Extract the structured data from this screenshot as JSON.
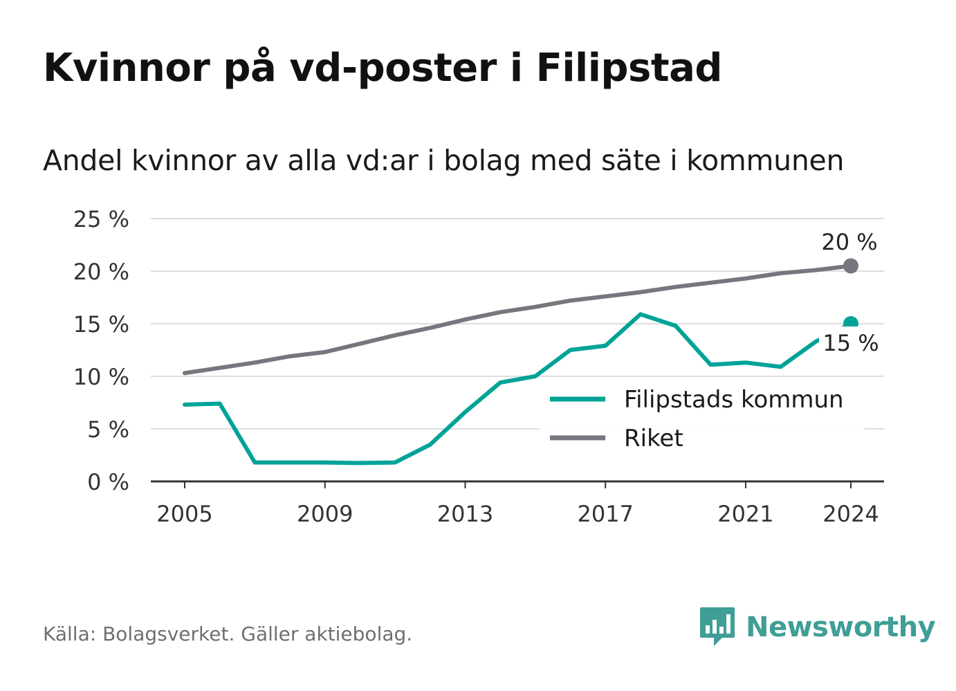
{
  "title": "Kvinnor på vd-poster i Filipstad",
  "subtitle": "Andel kvinnor av alla vd:ar i bolag med säte i kommunen",
  "source": "Källa: Bolagsverket. Gäller aktiebolag.",
  "brand": {
    "name": "Newsworthy",
    "icon": "newsworthy-logo-icon",
    "color": "#3f9e96"
  },
  "chart_data": {
    "type": "line",
    "x": [
      2005,
      2006,
      2007,
      2008,
      2009,
      2010,
      2011,
      2012,
      2013,
      2014,
      2015,
      2016,
      2017,
      2018,
      2019,
      2020,
      2021,
      2022,
      2023,
      2024
    ],
    "series": [
      {
        "name": "Filipstads kommun",
        "color": "#00a398",
        "values": [
          7.3,
          7.4,
          1.8,
          1.8,
          1.8,
          1.75,
          1.8,
          3.5,
          6.6,
          9.4,
          10.0,
          12.5,
          12.9,
          15.9,
          14.8,
          11.1,
          11.3,
          10.9,
          13.3,
          15.0
        ],
        "end_label": "15 %"
      },
      {
        "name": "Riket",
        "color": "#76767e",
        "values": [
          10.3,
          10.8,
          11.3,
          11.9,
          12.3,
          13.1,
          13.9,
          14.6,
          15.4,
          16.1,
          16.6,
          17.2,
          17.6,
          18.0,
          18.5,
          18.9,
          19.3,
          19.8,
          20.1,
          20.5
        ],
        "end_label": "20 %"
      }
    ],
    "x_ticks": [
      2005,
      2009,
      2013,
      2017,
      2021,
      2024
    ],
    "y_ticks": [
      0,
      5,
      10,
      15,
      20,
      25
    ],
    "y_tick_labels": [
      "0 %",
      "5 %",
      "10 %",
      "15 %",
      "20 %",
      "25 %"
    ],
    "ylim": [
      0,
      25
    ],
    "xlim": [
      2004,
      2025
    ],
    "grid": true,
    "legend_position": "right",
    "xlabel": "",
    "ylabel": ""
  }
}
